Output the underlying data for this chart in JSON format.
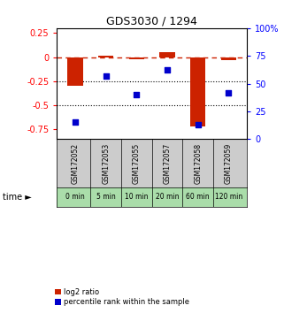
{
  "title": "GDS3030 / 1294",
  "samples": [
    "GSM172052",
    "GSM172053",
    "GSM172055",
    "GSM172057",
    "GSM172058",
    "GSM172059"
  ],
  "time_labels": [
    "0 min",
    "5 min",
    "10 min",
    "20 min",
    "60 min",
    "120 min"
  ],
  "log2_ratio": [
    -0.3,
    0.01,
    -0.02,
    0.05,
    -0.72,
    -0.03
  ],
  "percentile": [
    15,
    57,
    40,
    62,
    13,
    42
  ],
  "bar_color": "#cc2200",
  "scatter_color": "#0000cc",
  "left_ylim": [
    -0.85,
    0.3
  ],
  "right_ylim": [
    0,
    100
  ],
  "left_yticks": [
    0.25,
    0,
    -0.25,
    -0.5,
    -0.75
  ],
  "right_yticks": [
    100,
    75,
    50,
    25,
    0
  ],
  "dotted_lines": [
    -0.25,
    -0.5
  ],
  "dashed_zero_color": "#cc2200",
  "background_color": "#ffffff",
  "plot_bg": "#ffffff",
  "legend_log2": "log2 ratio",
  "legend_pct": "percentile rank within the sample",
  "time_row_color": "#aaddaa",
  "sample_row_color": "#cccccc",
  "bar_width": 0.5
}
